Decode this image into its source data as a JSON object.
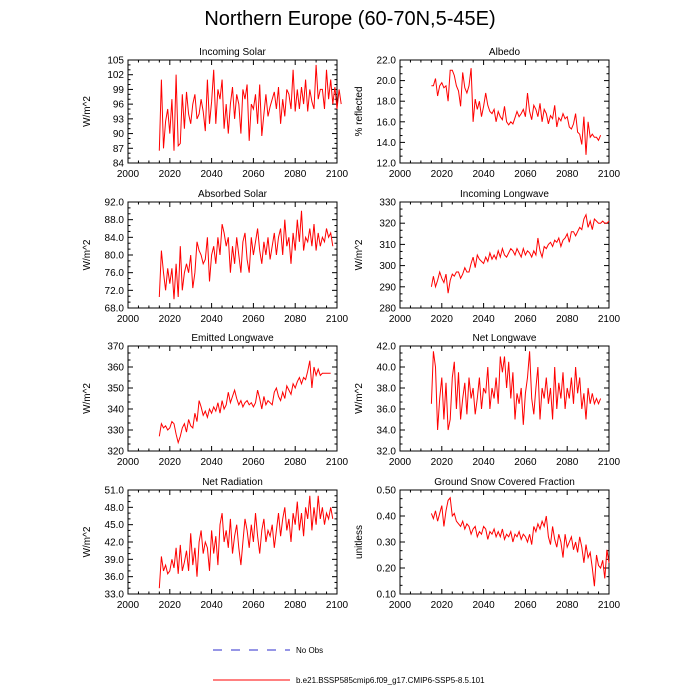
{
  "title": "Northern Europe (60-70N,5-45E)",
  "colors": {
    "series": "#ff0000",
    "obs": "#2d2dcc",
    "axis": "#000000"
  },
  "legend": {
    "obs_label": "No Obs",
    "model_label": "b.e21.BSSP585cmip6.f09_g17.CMIP6-SSP5-8.5.101"
  },
  "chart_data": [
    {
      "type": "line",
      "title": "Incoming Solar",
      "ylabel": "W/m^2",
      "xlim": [
        2000,
        2100
      ],
      "ylim": [
        84,
        105
      ],
      "xticks": [
        "2000",
        "2020",
        "2040",
        "2060",
        "2080",
        "2100"
      ],
      "yticks": [
        "84",
        "87",
        "90",
        "93",
        "96",
        "99",
        "102",
        "105"
      ],
      "series": [
        {
          "x_start": 2015,
          "values": [
            86.5,
            101,
            87,
            92.5,
            95,
            90,
            97,
            86.5,
            102,
            87.5,
            88,
            98,
            91,
            98.5,
            94,
            92,
            96,
            98,
            93,
            94,
            97,
            94.5,
            90.5,
            101,
            92,
            96.5,
            103,
            92,
            99,
            97,
            101,
            91,
            96,
            90,
            96,
            99.5,
            93,
            98,
            96,
            90,
            99,
            97,
            100,
            88.5,
            96,
            95,
            98,
            92,
            100,
            89.5,
            94,
            98,
            93.5,
            95.5,
            97,
            98.5,
            95,
            99.5,
            92,
            97,
            93.5,
            99,
            98,
            95,
            103,
            94.5,
            99,
            95,
            99.5,
            96,
            101,
            94.5,
            99,
            96.5,
            95,
            104,
            97,
            99,
            99,
            95,
            103,
            97,
            101,
            96,
            99.5,
            95,
            99,
            96
          ]
        }
      ]
    },
    {
      "type": "line",
      "title": "Albedo",
      "ylabel": "% reflected",
      "xlim": [
        2000,
        2100
      ],
      "ylim": [
        12,
        22
      ],
      "xticks": [
        "2000",
        "2020",
        "2040",
        "2060",
        "2080",
        "2100"
      ],
      "yticks": [
        "12.0",
        "14.0",
        "16.0",
        "18.0",
        "20.0",
        "22.0"
      ],
      "series": [
        {
          "x_start": 2015,
          "values": [
            19.5,
            19.5,
            20.2,
            18.5,
            19.5,
            19.8,
            19.3,
            19.5,
            18,
            21,
            21,
            20.5,
            19.5,
            19,
            17.5,
            20.8,
            19.3,
            18.8,
            19.5,
            21.2,
            16,
            18.2,
            17.2,
            18,
            16.5,
            17.5,
            18.8,
            17.6,
            17,
            16.8,
            17.2,
            16,
            17,
            16.5,
            16.2,
            17.5,
            16,
            15.7,
            16,
            15.8,
            16.4,
            17,
            16.5,
            16.8,
            17.2,
            16.5,
            18.8,
            17,
            16.2,
            17.6,
            17.2,
            16.5,
            17.8,
            16,
            17.2,
            16.8,
            15.8,
            16.6,
            16.3,
            17.6,
            15.5,
            16.4,
            16.1,
            16.8,
            16.3,
            16.5,
            15.5,
            15.3,
            15.8,
            16.8,
            15,
            14.8,
            13.8,
            16.5,
            12.8,
            16,
            14.5,
            14.8,
            14.5,
            14.5,
            14.2,
            14.7
          ]
        }
      ]
    },
    {
      "type": "line",
      "title": "Absorbed Solar",
      "ylabel": "W/m^2",
      "xlim": [
        2000,
        2100
      ],
      "ylim": [
        68,
        92
      ],
      "xticks": [
        "2000",
        "2020",
        "2040",
        "2060",
        "2080",
        "2100"
      ],
      "yticks": [
        "68.0",
        "72.0",
        "76.0",
        "80.0",
        "84.0",
        "88.0",
        "92.0"
      ],
      "series": [
        {
          "x_start": 2015,
          "values": [
            70.5,
            81,
            76,
            72,
            77,
            73.5,
            77,
            70,
            78,
            70.5,
            82,
            72,
            76,
            78,
            76,
            80,
            72.5,
            76,
            83,
            81,
            80,
            78,
            79,
            84,
            74,
            80,
            82,
            78,
            84,
            80,
            87,
            85,
            82,
            84,
            76,
            82,
            78,
            84,
            80,
            76,
            83,
            85,
            79,
            76,
            84,
            80,
            83,
            86,
            81,
            78,
            83,
            80,
            84,
            79,
            82,
            85,
            80,
            84,
            86,
            80,
            88,
            82,
            84,
            78,
            85,
            81,
            88,
            83,
            90,
            81,
            84,
            83,
            86,
            82,
            87,
            81,
            85,
            82,
            84,
            83,
            86,
            84,
            85,
            82
          ]
        }
      ]
    },
    {
      "type": "line",
      "title": "Incoming Longwave",
      "ylabel": "W/m^2",
      "xlim": [
        2000,
        2100
      ],
      "ylim": [
        280,
        330
      ],
      "xticks": [
        "2000",
        "2020",
        "2040",
        "2060",
        "2080",
        "2100"
      ],
      "yticks": [
        "280",
        "290",
        "300",
        "310",
        "320",
        "330"
      ],
      "series": [
        {
          "x_start": 2015,
          "values": [
            290,
            295,
            290,
            293,
            297,
            294,
            292,
            296,
            287,
            293,
            296,
            295,
            297,
            297,
            294,
            296,
            299,
            297,
            297,
            301,
            304,
            299,
            305,
            303,
            302,
            301,
            304,
            302,
            306,
            303,
            305,
            303,
            307,
            304,
            308,
            305,
            304,
            306,
            308,
            307,
            305,
            308,
            306,
            304,
            308,
            305,
            307,
            306,
            304,
            307,
            305,
            313,
            307,
            304,
            309,
            308,
            310,
            311,
            309,
            312,
            311,
            313,
            309,
            312,
            313,
            315,
            311,
            316,
            316,
            314,
            316,
            318,
            317,
            322,
            324,
            318,
            321,
            317,
            322,
            321,
            320,
            320,
            321,
            320,
            320,
            321
          ]
        }
      ]
    },
    {
      "type": "line",
      "title": "Emitted Longwave",
      "ylabel": "W/m^2",
      "xlim": [
        2000,
        2100
      ],
      "ylim": [
        320,
        370
      ],
      "xticks": [
        "2000",
        "2020",
        "2040",
        "2060",
        "2080",
        "2100"
      ],
      "yticks": [
        "320",
        "330",
        "340",
        "350",
        "360",
        "370"
      ],
      "series": [
        {
          "x_start": 2015,
          "values": [
            327,
            333,
            331,
            332,
            330,
            331,
            334,
            333,
            328,
            324,
            327,
            331,
            333,
            329,
            335,
            332,
            331,
            338,
            334,
            344,
            341,
            337,
            339,
            336,
            340,
            338,
            341,
            339,
            343,
            338,
            344,
            340,
            342,
            348,
            343,
            346,
            349,
            345,
            342,
            344,
            341,
            343,
            344,
            342,
            343,
            341,
            343,
            349,
            345,
            340,
            346,
            342,
            344,
            343,
            342,
            348,
            350,
            346,
            344,
            348,
            345,
            351,
            349,
            347,
            352,
            350,
            353,
            355,
            352,
            355,
            354,
            358,
            363,
            350,
            360,
            356,
            359,
            356,
            357,
            357,
            357,
            357,
            357
          ]
        }
      ]
    },
    {
      "type": "line",
      "title": "Net Longwave",
      "ylabel": "W/m^2",
      "xlim": [
        2000,
        2100
      ],
      "ylim": [
        32,
        42
      ],
      "xticks": [
        "2000",
        "2020",
        "2040",
        "2060",
        "2080",
        "2100"
      ],
      "yticks": [
        "32.0",
        "34.0",
        "36.0",
        "38.0",
        "40.0",
        "42.0"
      ],
      "series": [
        {
          "x_start": 2015,
          "values": [
            36.5,
            41.5,
            40,
            34,
            37,
            39,
            35,
            38.5,
            34,
            35,
            39,
            40.5,
            36,
            39.5,
            35,
            37,
            38.5,
            35.5,
            39,
            37,
            38,
            35.5,
            37,
            39,
            36,
            38,
            37.5,
            40,
            36,
            38,
            37,
            39,
            36.5,
            41,
            39.5,
            41,
            38,
            40.5,
            37,
            39.5,
            35,
            37.5,
            36.5,
            38,
            34.5,
            37.5,
            39,
            41.5,
            37,
            35.5,
            38,
            40,
            35,
            38,
            37,
            39,
            36.5,
            38,
            35,
            40,
            36,
            38.5,
            37,
            39.5,
            36,
            38,
            37,
            39,
            36.5,
            40,
            37.5,
            39,
            36,
            37.5,
            35,
            38,
            36.5,
            37.5,
            36.5,
            37,
            36.5,
            37
          ]
        }
      ]
    },
    {
      "type": "line",
      "title": "Net Radiation",
      "ylabel": "W/m^2",
      "xlim": [
        2000,
        2100
      ],
      "ylim": [
        33,
        51
      ],
      "xticks": [
        "2000",
        "2020",
        "2040",
        "2060",
        "2080",
        "2100"
      ],
      "yticks": [
        "33.0",
        "36.0",
        "39.0",
        "42.0",
        "45.0",
        "48.0",
        "51.0"
      ],
      "series": [
        {
          "x_start": 2015,
          "values": [
            34,
            39.5,
            37,
            38,
            36.5,
            37,
            39,
            37.5,
            41,
            36.5,
            41.5,
            37,
            38.5,
            40.5,
            37,
            43.5,
            38,
            41,
            36,
            42,
            44,
            40,
            42,
            41,
            37,
            44,
            40,
            43,
            38,
            45,
            47,
            42,
            44,
            41,
            46,
            40,
            43,
            45,
            41,
            38,
            42,
            46,
            44,
            41,
            45,
            42,
            47,
            43,
            40,
            44,
            46,
            42,
            44,
            43,
            45,
            41,
            44,
            47,
            43,
            46,
            48,
            44,
            46,
            42,
            47,
            45,
            49,
            44,
            47,
            43,
            48,
            46,
            50,
            44,
            48,
            45,
            50,
            46,
            48,
            45,
            47,
            46,
            48,
            46
          ]
        }
      ]
    },
    {
      "type": "line",
      "title": "Ground Snow Covered Fraction",
      "ylabel": "unitless",
      "xlim": [
        2000,
        2100
      ],
      "ylim": [
        0.1,
        0.5
      ],
      "xticks": [
        "2000",
        "2020",
        "2040",
        "2060",
        "2080",
        "2100"
      ],
      "yticks": [
        "0.10",
        "0.20",
        "0.30",
        "0.40",
        "0.50"
      ],
      "series": [
        {
          "x_start": 2015,
          "values": [
            0.41,
            0.39,
            0.42,
            0.38,
            0.41,
            0.44,
            0.36,
            0.42,
            0.46,
            0.47,
            0.4,
            0.41,
            0.38,
            0.37,
            0.36,
            0.38,
            0.35,
            0.37,
            0.36,
            0.33,
            0.35,
            0.36,
            0.32,
            0.34,
            0.33,
            0.36,
            0.35,
            0.31,
            0.34,
            0.33,
            0.35,
            0.32,
            0.34,
            0.32,
            0.35,
            0.31,
            0.33,
            0.32,
            0.34,
            0.3,
            0.33,
            0.32,
            0.34,
            0.31,
            0.33,
            0.32,
            0.3,
            0.33,
            0.29,
            0.36,
            0.34,
            0.37,
            0.35,
            0.38,
            0.36,
            0.4,
            0.32,
            0.29,
            0.36,
            0.31,
            0.28,
            0.33,
            0.3,
            0.24,
            0.33,
            0.28,
            0.3,
            0.32,
            0.27,
            0.3,
            0.26,
            0.32,
            0.28,
            0.22,
            0.29,
            0.24,
            0.26,
            0.2,
            0.13,
            0.25,
            0.21,
            0.2,
            0.23,
            0.16,
            0.27,
            0.22
          ]
        }
      ]
    }
  ]
}
